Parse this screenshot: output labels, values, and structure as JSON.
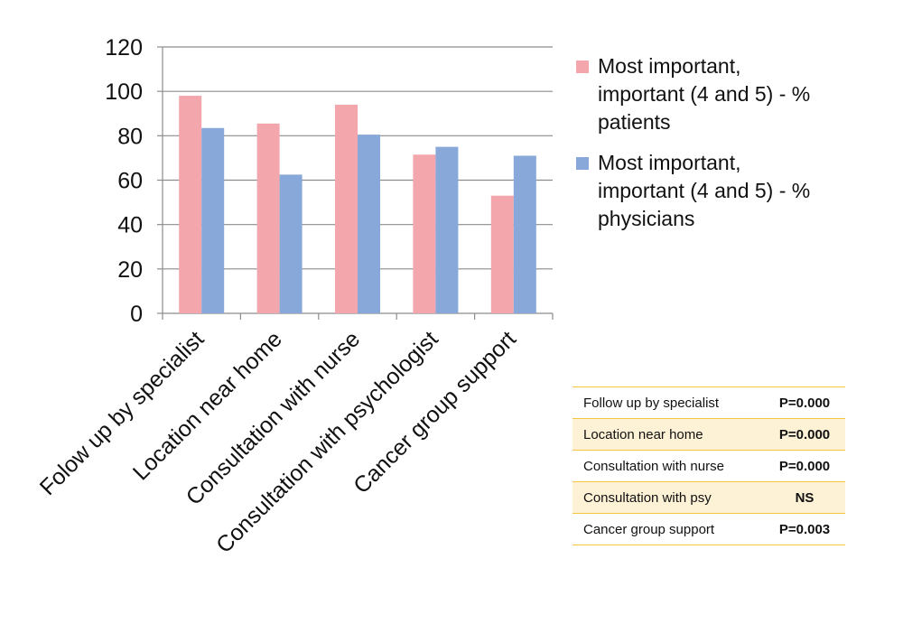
{
  "chart_data": {
    "type": "bar",
    "categories": [
      "Folow up by specialist",
      "Location near home",
      "Consultation with nurse",
      "Consultation with psychologist",
      "Cancer group support"
    ],
    "series": [
      {
        "name": "Most important, important (4 and 5) - % patients",
        "values": [
          98,
          85.5,
          94,
          71.5,
          53
        ],
        "color": "#f4a6ad"
      },
      {
        "name": "Most important, important (4 and 5) - % physicians",
        "values": [
          83.5,
          62.5,
          80.5,
          75,
          71
        ],
        "color": "#87a8d8"
      }
    ],
    "ylim": [
      0,
      120
    ],
    "yticks": [
      "0",
      "20",
      "40",
      "60",
      "80",
      "100",
      "120"
    ],
    "grid": true,
    "legend": "right",
    "gridline_color": "#8c8c8c",
    "xlabel": "",
    "ylabel": ""
  },
  "legend_lines": [
    [
      "Most important,",
      "important (4 and 5) - %",
      "patients"
    ],
    [
      "Most important,",
      "important (4 and 5) - %",
      "physicians"
    ]
  ],
  "pvalue_table": {
    "rows": [
      {
        "label": "Follow up by specialist",
        "value": "P=0.000"
      },
      {
        "label": "Location near home",
        "value": "P=0.000"
      },
      {
        "label": "Consultation with nurse",
        "value": "P=0.000"
      },
      {
        "label": "Consultation with psy",
        "value": "NS"
      },
      {
        "label": "Cancer group support",
        "value": "P=0.003"
      }
    ],
    "border_color": "#f5c542",
    "alt_row_color": "#fdf1d6"
  }
}
